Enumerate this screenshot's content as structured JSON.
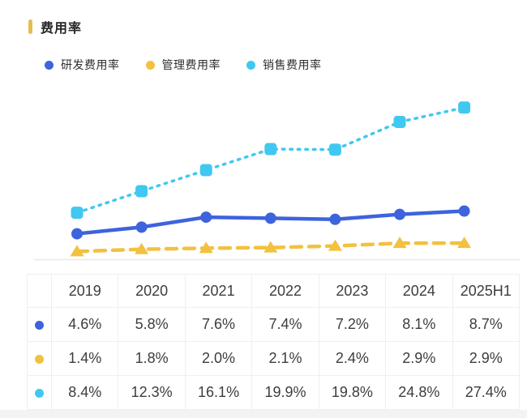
{
  "title": "费用率",
  "chart_data": {
    "type": "line",
    "title": "费用率",
    "categories": [
      "2019",
      "2020",
      "2021",
      "2022",
      "2023",
      "2024",
      "2025H1"
    ],
    "series": [
      {
        "name": "研发费用率",
        "values": [
          4.6,
          5.8,
          7.6,
          7.4,
          7.2,
          8.1,
          8.7
        ],
        "color": "#3d63dd",
        "marker": "circle",
        "line_style": "solid"
      },
      {
        "name": "管理费用率",
        "values": [
          1.4,
          1.8,
          2.0,
          2.1,
          2.4,
          2.9,
          2.9
        ],
        "color": "#f2c13e",
        "marker": "triangle",
        "line_style": "dashed"
      },
      {
        "name": "销售费用率",
        "values": [
          8.4,
          12.3,
          16.1,
          19.9,
          19.8,
          24.8,
          27.4
        ],
        "color": "#41c8f0",
        "marker": "square",
        "line_style": "dotted"
      }
    ],
    "xlabel": "",
    "ylabel": "",
    "ylim": [
      0,
      30
    ],
    "grid": false,
    "legend_position": "top"
  },
  "table": {
    "years": [
      "2019",
      "2020",
      "2021",
      "2022",
      "2023",
      "2024",
      "2025H1"
    ],
    "rows": [
      {
        "series": "研发费用率",
        "color": "#3d63dd",
        "values": [
          "4.6%",
          "5.8%",
          "7.6%",
          "7.4%",
          "7.2%",
          "8.1%",
          "8.7%"
        ]
      },
      {
        "series": "管理费用率",
        "color": "#f2c13e",
        "values": [
          "1.4%",
          "1.8%",
          "2.0%",
          "2.1%",
          "2.4%",
          "2.9%",
          "2.9%"
        ]
      },
      {
        "series": "销售费用率",
        "color": "#41c8f0",
        "values": [
          "8.4%",
          "12.3%",
          "16.1%",
          "19.9%",
          "19.8%",
          "24.8%",
          "27.4%"
        ]
      }
    ]
  },
  "colors": {
    "title_marker": "#e6be4f",
    "rnd_blue": "#3d63dd",
    "admin_yellow": "#f2c13e",
    "sales_cyan": "#41c8f0",
    "axis_line": "#e9e9ed",
    "table_border": "#efeff1",
    "text_dark": "#3d3d3d"
  }
}
